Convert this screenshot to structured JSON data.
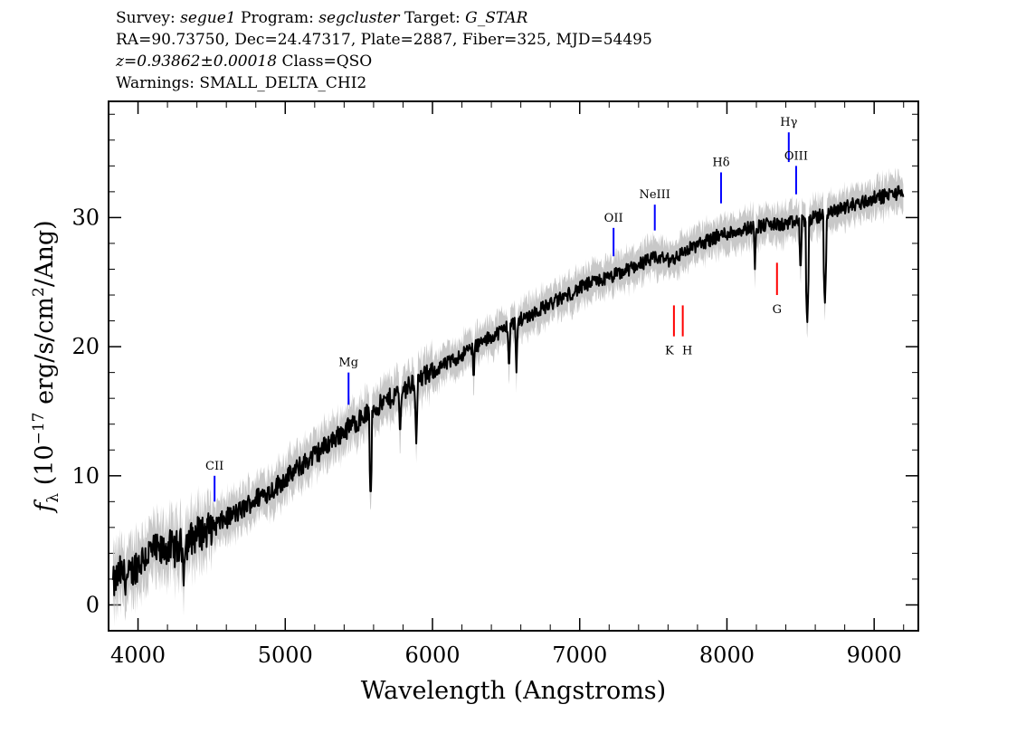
{
  "header": {
    "line1": {
      "survey_label": "Survey: ",
      "survey": "segue1",
      "program_label": " Program: ",
      "program": "segcluster",
      "target_label": " Target: ",
      "target": "G_STAR"
    },
    "line2": "RA=90.73750, Dec=24.47317, Plate=2887, Fiber=325, MJD=54495",
    "line3": {
      "redshift": "z=0.93862±0.00018",
      "class_text": " Class=QSO"
    },
    "line4": "Warnings: SMALL_DELTA_CHI2"
  },
  "chart_data": {
    "type": "line",
    "title": "",
    "xlabel": "Wavelength (Angstroms)",
    "ylabel_prefix": "f",
    "ylabel_sub": "λ",
    "ylabel_open": " (10",
    "ylabel_exp": "−17",
    "ylabel_mid": " erg/s/cm",
    "ylabel_exp2": "2",
    "ylabel_close": "/Ang)",
    "xlim": [
      3800,
      9300
    ],
    "ylim": [
      -2,
      39
    ],
    "xticks": [
      4000,
      5000,
      6000,
      7000,
      8000,
      9000
    ],
    "yticks": [
      0,
      10,
      20,
      30
    ],
    "grid": false,
    "colors": {
      "flux": "#000000",
      "error": "#c8c8c8",
      "emission": "#0000ff",
      "absorption": "#ff0000"
    },
    "series": [
      {
        "x": [
          3830,
          3880,
          3930,
          3980,
          4050,
          4100,
          4150,
          4200,
          4250,
          4300,
          4350,
          4400,
          4450,
          4500,
          4550,
          4600,
          4650,
          4700,
          4750,
          4800,
          4850,
          4900,
          4950,
          5000,
          5050,
          5100,
          5150,
          5200,
          5250,
          5300,
          5350,
          5400,
          5450,
          5500,
          5550,
          5600,
          5650,
          5700,
          5750,
          5800,
          5850,
          5900,
          5950,
          6000,
          6050,
          6100,
          6150,
          6200,
          6250,
          6300,
          6350,
          6400,
          6450,
          6500,
          6550,
          6600,
          6650,
          6700,
          6750,
          6800,
          6850,
          6900,
          6950,
          7000,
          7050,
          7100,
          7150,
          7200,
          7250,
          7300,
          7350,
          7400,
          7450,
          7500,
          7550,
          7600,
          7650,
          7700,
          7750,
          7800,
          7850,
          7900,
          7950,
          8000,
          8050,
          8100,
          8150,
          8200,
          8250,
          8300,
          8350,
          8400,
          8450,
          8500,
          8550,
          8600,
          8650,
          8700,
          8750,
          8800,
          8850,
          8900,
          8950,
          9000,
          9050,
          9100,
          9150,
          9200
        ],
        "values": [
          1.5,
          2.5,
          2.0,
          3.0,
          3.8,
          4.2,
          4.0,
          4.5,
          4.3,
          4.6,
          5.0,
          5.5,
          5.7,
          6.0,
          6.3,
          6.7,
          7.0,
          7.3,
          7.8,
          8.2,
          8.6,
          8.8,
          9.3,
          9.8,
          10.2,
          10.7,
          11.2,
          11.6,
          12.1,
          12.6,
          13.0,
          13.5,
          13.9,
          14.3,
          14.8,
          15.2,
          15.5,
          15.9,
          16.3,
          16.7,
          17.0,
          17.4,
          17.7,
          18.0,
          18.4,
          18.7,
          19.0,
          19.4,
          19.8,
          20.1,
          20.4,
          20.8,
          21.1,
          21.5,
          21.8,
          22.1,
          22.4,
          22.7,
          23.0,
          23.3,
          23.6,
          23.9,
          24.2,
          24.5,
          24.8,
          25.0,
          25.2,
          25.3,
          25.6,
          25.8,
          26.1,
          26.4,
          26.6,
          26.8,
          26.9,
          26.7,
          26.9,
          27.3,
          27.6,
          27.9,
          28.1,
          28.4,
          28.6,
          28.8,
          28.9,
          29.1,
          29.2,
          29.3,
          29.4,
          29.5,
          29.4,
          29.5,
          29.6,
          29.7,
          29.8,
          30.0,
          30.2,
          30.3,
          30.6,
          30.8,
          31.0,
          31.1,
          31.3,
          31.5,
          31.6,
          31.8,
          31.9,
          32.0
        ]
      }
    ],
    "absorption_dips": [
      {
        "x": 4310,
        "y": 1.5
      },
      {
        "x": 5580,
        "y": 8.0
      },
      {
        "x": 5780,
        "y": 12.8
      },
      {
        "x": 5890,
        "y": 12.5
      },
      {
        "x": 6280,
        "y": 17.0
      },
      {
        "x": 6520,
        "y": 17.9
      },
      {
        "x": 6570,
        "y": 18.0
      },
      {
        "x": 8190,
        "y": 26.0
      },
      {
        "x": 8500,
        "y": 25.5
      },
      {
        "x": 8545,
        "y": 21.5
      },
      {
        "x": 8665,
        "y": 23.0
      }
    ],
    "line_markers": [
      {
        "label": "CII",
        "x": 4520,
        "y_from": 8.0,
        "y_to": 10.0,
        "type": "emission"
      },
      {
        "label": "Mg",
        "x": 5430,
        "y_from": 15.5,
        "y_to": 18.0,
        "type": "emission"
      },
      {
        "label": "OII",
        "x": 7230,
        "y_from": 27.0,
        "y_to": 29.2,
        "type": "emission"
      },
      {
        "label": "NeIII",
        "x": 7510,
        "y_from": 29.0,
        "y_to": 31.0,
        "type": "emission"
      },
      {
        "label": "Hδ",
        "x": 7960,
        "y_from": 31.1,
        "y_to": 33.5,
        "type": "emission"
      },
      {
        "label": "Hγ",
        "x": 8420,
        "y_from": 34.3,
        "y_to": 36.6,
        "type": "emission"
      },
      {
        "label": "OIII",
        "x": 8470,
        "y_from": 31.8,
        "y_to": 34.0,
        "type": "emission"
      },
      {
        "label": "K",
        "x": 7640,
        "y_from": 23.2,
        "y_to": 20.8,
        "type": "absorption"
      },
      {
        "label": "H",
        "x": 7700,
        "y_from": 23.2,
        "y_to": 20.8,
        "type": "absorption"
      },
      {
        "label": "G",
        "x": 8340,
        "y_from": 26.5,
        "y_to": 24.0,
        "type": "absorption"
      }
    ]
  }
}
